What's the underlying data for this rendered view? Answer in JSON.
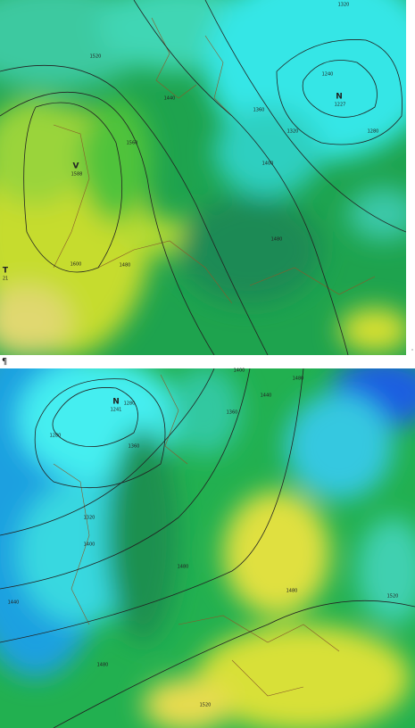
{
  "maps": [
    {
      "labels": [
        "V",
        "1588",
        "N",
        "1227",
        "T",
        "21",
        "1320",
        "1240",
        "1280",
        "1320",
        "1360",
        "1400",
        "1440",
        "1480",
        "1480",
        "1520",
        "1560",
        "1600"
      ]
    },
    {
      "labels": [
        "N",
        "1241",
        "1280",
        "1280",
        "1320",
        "1360",
        "1400",
        "1440",
        "1480",
        "1480",
        "1480",
        "1520",
        "1520",
        "1360",
        "1400",
        "1440",
        "1480"
      ]
    }
  ],
  "marks": [
    "¶"
  ]
}
